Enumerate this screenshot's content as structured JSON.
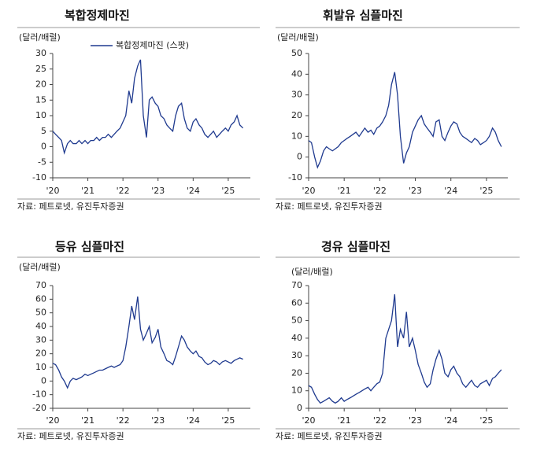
{
  "chart_data": [
    {
      "type": "line",
      "title": "복합정제마진",
      "y_label": "(달러/배럴)",
      "source": "자료: 페트로넷, 유진투자증권",
      "x": [
        2020.0,
        2020.08,
        2020.17,
        2020.25,
        2020.33,
        2020.42,
        2020.5,
        2020.58,
        2020.67,
        2020.75,
        2020.83,
        2020.92,
        2021.0,
        2021.08,
        2021.17,
        2021.25,
        2021.33,
        2021.42,
        2021.5,
        2021.58,
        2021.67,
        2021.75,
        2021.83,
        2021.92,
        2022.0,
        2022.08,
        2022.17,
        2022.25,
        2022.33,
        2022.42,
        2022.5,
        2022.58,
        2022.67,
        2022.75,
        2022.83,
        2022.92,
        2023.0,
        2023.08,
        2023.17,
        2023.25,
        2023.33,
        2023.42,
        2023.5,
        2023.58,
        2023.67,
        2023.75,
        2023.83,
        2023.92,
        2024.0,
        2024.08,
        2024.17,
        2024.25,
        2024.33,
        2024.42,
        2024.5,
        2024.58,
        2024.67,
        2024.75,
        2024.83,
        2024.92,
        2025.0,
        2025.08,
        2025.17,
        2025.25,
        2025.33,
        2025.42
      ],
      "series": [
        {
          "name": "복합정제마진 (스팟)",
          "color": "#1f3a8f",
          "values": [
            5,
            4,
            3,
            2,
            -2,
            1,
            2,
            1,
            1,
            2,
            1,
            2,
            1,
            2,
            2,
            3,
            2,
            3,
            3,
            4,
            3,
            4,
            5,
            6,
            8,
            10,
            18,
            14,
            22,
            26,
            28,
            10,
            3,
            15,
            16,
            14,
            13,
            10,
            9,
            7,
            6,
            5,
            10,
            13,
            14,
            9,
            6,
            5,
            8,
            9,
            7,
            6,
            4,
            3,
            4,
            5,
            3,
            4,
            5,
            6,
            5,
            7,
            8,
            10,
            7,
            6
          ]
        }
      ],
      "xlim": [
        2020,
        2025.63
      ],
      "xticks": [
        {
          "value": 2020,
          "label": "'20"
        },
        {
          "value": 2021,
          "label": "'21"
        },
        {
          "value": 2022,
          "label": "'22"
        },
        {
          "value": 2023,
          "label": "'23"
        },
        {
          "value": 2024,
          "label": "'24"
        },
        {
          "value": 2025,
          "label": "'25"
        }
      ],
      "ylim": [
        -10,
        30
      ],
      "yticks": [
        -10,
        -5,
        0,
        5,
        10,
        15,
        20,
        25,
        30
      ]
    },
    {
      "type": "line",
      "title": "휘발유 심플마진",
      "y_label": "(달러/배럴)",
      "source": "자료: 페트로넷, 유진투자증권",
      "color": "#1f3a8f",
      "x": [
        2020.0,
        2020.08,
        2020.17,
        2020.25,
        2020.33,
        2020.42,
        2020.5,
        2020.58,
        2020.67,
        2020.75,
        2020.83,
        2020.92,
        2021.0,
        2021.08,
        2021.17,
        2021.25,
        2021.33,
        2021.42,
        2021.5,
        2021.58,
        2021.67,
        2021.75,
        2021.83,
        2021.92,
        2022.0,
        2022.08,
        2022.17,
        2022.25,
        2022.33,
        2022.42,
        2022.5,
        2022.58,
        2022.67,
        2022.75,
        2022.83,
        2022.92,
        2023.0,
        2023.08,
        2023.17,
        2023.25,
        2023.33,
        2023.42,
        2023.5,
        2023.58,
        2023.67,
        2023.75,
        2023.83,
        2023.92,
        2024.0,
        2024.08,
        2024.17,
        2024.25,
        2024.33,
        2024.42,
        2024.5,
        2024.58,
        2024.67,
        2024.75,
        2024.83,
        2024.92,
        2025.0,
        2025.08,
        2025.17,
        2025.25,
        2025.33,
        2025.42
      ],
      "values": [
        8,
        7,
        0,
        -5,
        -2,
        3,
        5,
        4,
        3,
        4,
        5,
        7,
        8,
        9,
        10,
        11,
        12,
        10,
        12,
        14,
        12,
        13,
        11,
        14,
        15,
        17,
        20,
        25,
        35,
        41,
        30,
        10,
        -3,
        2,
        5,
        12,
        15,
        18,
        20,
        16,
        14,
        12,
        10,
        17,
        18,
        10,
        8,
        12,
        15,
        17,
        16,
        12,
        10,
        9,
        8,
        7,
        9,
        8,
        6,
        7,
        8,
        10,
        14,
        12,
        8,
        5
      ],
      "xlim": [
        2020,
        2025.6
      ],
      "xticks": [
        {
          "value": 2020,
          "label": "'20"
        },
        {
          "value": 2021,
          "label": "'21"
        },
        {
          "value": 2022,
          "label": "'22"
        },
        {
          "value": 2023,
          "label": "'23"
        },
        {
          "value": 2024,
          "label": "'24"
        },
        {
          "value": 2025,
          "label": "'25"
        }
      ],
      "ylim": [
        -10,
        50
      ],
      "yticks": [
        -10,
        0,
        10,
        20,
        30,
        40,
        50
      ]
    },
    {
      "type": "line",
      "title": "등유 심플마진",
      "y_label": "(달러/배럴)",
      "source": "자료: 페트로넷, 유진투자증권",
      "color": "#1f3a8f",
      "x": [
        2020.0,
        2020.08,
        2020.17,
        2020.25,
        2020.33,
        2020.42,
        2020.5,
        2020.58,
        2020.67,
        2020.75,
        2020.83,
        2020.92,
        2021.0,
        2021.08,
        2021.17,
        2021.25,
        2021.33,
        2021.42,
        2021.5,
        2021.58,
        2021.67,
        2021.75,
        2021.83,
        2021.92,
        2022.0,
        2022.08,
        2022.17,
        2022.25,
        2022.33,
        2022.42,
        2022.5,
        2022.58,
        2022.67,
        2022.75,
        2022.83,
        2022.92,
        2023.0,
        2023.08,
        2023.17,
        2023.25,
        2023.33,
        2023.42,
        2023.5,
        2023.58,
        2023.67,
        2023.75,
        2023.83,
        2023.92,
        2024.0,
        2024.08,
        2024.17,
        2024.25,
        2024.33,
        2024.42,
        2024.5,
        2024.58,
        2024.67,
        2024.75,
        2024.83,
        2024.92,
        2025.0,
        2025.08,
        2025.17,
        2025.25,
        2025.33,
        2025.42
      ],
      "values": [
        13,
        12,
        8,
        3,
        0,
        -5,
        0,
        2,
        1,
        2,
        3,
        5,
        4,
        5,
        6,
        7,
        8,
        8,
        9,
        10,
        11,
        10,
        11,
        12,
        15,
        25,
        40,
        55,
        45,
        62,
        38,
        30,
        35,
        40,
        28,
        32,
        38,
        25,
        20,
        15,
        14,
        12,
        18,
        25,
        33,
        30,
        25,
        22,
        20,
        22,
        18,
        17,
        14,
        12,
        13,
        15,
        14,
        12,
        14,
        15,
        14,
        13,
        15,
        16,
        17,
        16
      ],
      "xlim": [
        2020,
        2025.63
      ],
      "xticks": [
        {
          "value": 2020,
          "label": "'20"
        },
        {
          "value": 2021,
          "label": "'21"
        },
        {
          "value": 2022,
          "label": "'22"
        },
        {
          "value": 2023,
          "label": "'23"
        },
        {
          "value": 2024,
          "label": "'24"
        },
        {
          "value": 2025,
          "label": "'25"
        }
      ],
      "ylim": [
        -20,
        70
      ],
      "yticks": [
        -20,
        -10,
        0,
        10,
        20,
        30,
        40,
        50,
        60,
        70
      ]
    },
    {
      "type": "line",
      "title": "경유 심플마진",
      "y_label": "(달러/배럴)",
      "source": "자료: 페트로넷, 유진투자증권",
      "color": "#1f3a8f",
      "x": [
        2020.0,
        2020.08,
        2020.17,
        2020.25,
        2020.33,
        2020.42,
        2020.5,
        2020.58,
        2020.67,
        2020.75,
        2020.83,
        2020.92,
        2021.0,
        2021.08,
        2021.17,
        2021.25,
        2021.33,
        2021.42,
        2021.5,
        2021.58,
        2021.67,
        2021.75,
        2021.83,
        2021.92,
        2022.0,
        2022.08,
        2022.17,
        2022.25,
        2022.33,
        2022.42,
        2022.5,
        2022.58,
        2022.67,
        2022.75,
        2022.83,
        2022.92,
        2023.0,
        2023.08,
        2023.17,
        2023.25,
        2023.33,
        2023.42,
        2023.5,
        2023.58,
        2023.67,
        2023.75,
        2023.83,
        2023.92,
        2024.0,
        2024.08,
        2024.17,
        2024.25,
        2024.33,
        2024.42,
        2024.5,
        2024.58,
        2024.67,
        2024.75,
        2024.83,
        2024.92,
        2025.0,
        2025.08,
        2025.17,
        2025.25,
        2025.33,
        2025.42
      ],
      "values": [
        13,
        12,
        8,
        5,
        3,
        4,
        5,
        6,
        4,
        3,
        4,
        6,
        4,
        5,
        6,
        7,
        8,
        9,
        10,
        11,
        12,
        10,
        12,
        14,
        15,
        20,
        40,
        45,
        50,
        65,
        35,
        45,
        40,
        55,
        35,
        40,
        33,
        25,
        20,
        15,
        12,
        14,
        22,
        28,
        33,
        28,
        20,
        18,
        22,
        24,
        20,
        18,
        14,
        12,
        14,
        16,
        13,
        12,
        14,
        15,
        16,
        13,
        17,
        18,
        20,
        22
      ],
      "xlim": [
        2020,
        2025.6
      ],
      "xticks": [
        {
          "value": 2020,
          "label": "'20"
        },
        {
          "value": 2021,
          "label": "'21"
        },
        {
          "value": 2022,
          "label": "'22"
        },
        {
          "value": 2023,
          "label": "'23"
        },
        {
          "value": 2024,
          "label": "'24"
        },
        {
          "value": 2025,
          "label": "'25"
        }
      ],
      "ylim": [
        0,
        70
      ],
      "yticks": [
        0,
        10,
        20,
        30,
        40,
        50,
        60,
        70
      ]
    }
  ]
}
